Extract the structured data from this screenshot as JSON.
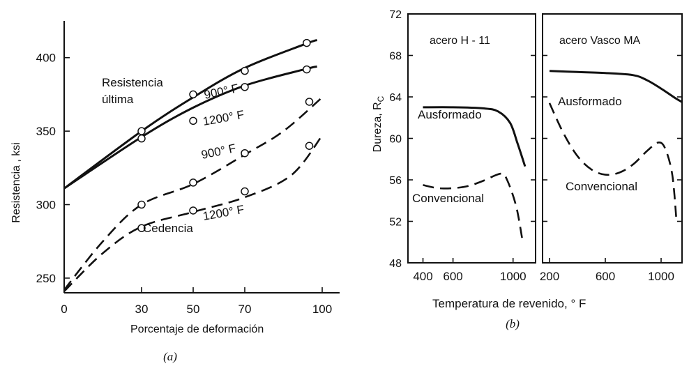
{
  "chart_data": [
    {
      "type": "line",
      "caption": "(a)",
      "xlabel": "Porcentaje de deformación",
      "ylabel": "Resistencia , ksi",
      "xlim": [
        0,
        100
      ],
      "ylim": [
        240,
        425
      ],
      "xticks": [
        0,
        30,
        50,
        70,
        100
      ],
      "yticks": [
        250,
        300,
        350,
        400
      ],
      "grid": false,
      "series": [
        {
          "name": "900° F",
          "group": "Resistencia última",
          "style": "solid",
          "x": [
            0,
            30,
            50,
            70,
            93,
            98
          ],
          "y": [
            311,
            350,
            373,
            393,
            409,
            412
          ],
          "marker_x": [
            30,
            50,
            70,
            94
          ],
          "marker_y": [
            350,
            375,
            391,
            410
          ]
        },
        {
          "name": "1200° F",
          "group": "Resistencia última",
          "style": "solid",
          "x": [
            0,
            30,
            50,
            70,
            93,
            98
          ],
          "y": [
            311,
            346,
            366,
            381,
            392,
            394
          ],
          "marker_x": [
            30,
            50,
            70,
            94
          ],
          "marker_y": [
            345,
            357,
            380,
            392
          ]
        },
        {
          "name": "900° F",
          "group": "Cedencia",
          "style": "dashed",
          "x": [
            0,
            15,
            30,
            50,
            70,
            85,
            100
          ],
          "y": [
            242,
            275,
            300,
            314,
            334,
            350,
            373
          ],
          "marker_x": [
            30,
            50,
            70,
            95
          ],
          "marker_y": [
            300,
            315,
            335,
            370
          ]
        },
        {
          "name": "1200° F",
          "group": "Cedencia",
          "style": "dashed",
          "x": [
            0,
            15,
            30,
            50,
            70,
            88,
            100
          ],
          "y": [
            241,
            267,
            285,
            295,
            305,
            320,
            347
          ],
          "marker_x": [
            30,
            50,
            70,
            95
          ],
          "marker_y": [
            284,
            296,
            309,
            340
          ]
        }
      ],
      "annotations": {
        "ultima_label_1": "Resistencia",
        "ultima_label_2": "última",
        "cedencia_label": "Cedencia",
        "u900": "900° F",
        "u1200": "1200° F",
        "c900": "900° F",
        "c1200": "1200° F"
      }
    },
    {
      "type": "line",
      "caption": "(b)",
      "xlabel": "Temperatura de revenido, ° F",
      "ylabel": "Dureza, R",
      "ylabel_subscript": "C",
      "ylim": [
        48,
        72
      ],
      "yticks": [
        48,
        52,
        56,
        60,
        64,
        68,
        72
      ],
      "grid": false,
      "panels": [
        {
          "title": "acero H - 11",
          "xlim": [
            300,
            1150
          ],
          "xtick_values": [
            400,
            600,
            1000
          ],
          "xtick_labels": [
            "400",
            "600",
            "1000"
          ],
          "series": [
            {
              "name": "Ausformado",
              "style": "solid",
              "x": [
                400,
                600,
                800,
                900,
                980,
                1030,
                1080
              ],
              "y": [
                63.0,
                63.0,
                62.9,
                62.6,
                61.5,
                59.5,
                57.3
              ]
            },
            {
              "name": "Convencional",
              "style": "dashed",
              "x": [
                400,
                500,
                600,
                700,
                800,
                920,
                960,
                1020,
                1060
              ],
              "y": [
                55.5,
                55.2,
                55.2,
                55.4,
                55.9,
                56.6,
                56.0,
                53.5,
                50.4
              ]
            }
          ]
        },
        {
          "title": "acero Vasco MA",
          "xlim": [
            150,
            1150
          ],
          "xtick_values": [
            200,
            600,
            1000
          ],
          "xtick_labels": [
            "200",
            "600",
            "1000"
          ],
          "series": [
            {
              "name": "Ausformado",
              "style": "solid",
              "x": [
                200,
                400,
                600,
                800,
                900,
                1000,
                1100,
                1150
              ],
              "y": [
                66.5,
                66.4,
                66.3,
                66.1,
                65.6,
                64.8,
                63.9,
                63.5
              ]
            },
            {
              "name": "Convencional",
              "style": "dashed",
              "x": [
                200,
                300,
                400,
                500,
                600,
                700,
                800,
                900,
                980,
                1030,
                1080,
                1110
              ],
              "y": [
                63.4,
                60.5,
                58.3,
                57.0,
                56.5,
                56.7,
                57.5,
                58.8,
                59.6,
                59.0,
                56.5,
                52.1
              ]
            }
          ]
        }
      ]
    }
  ]
}
